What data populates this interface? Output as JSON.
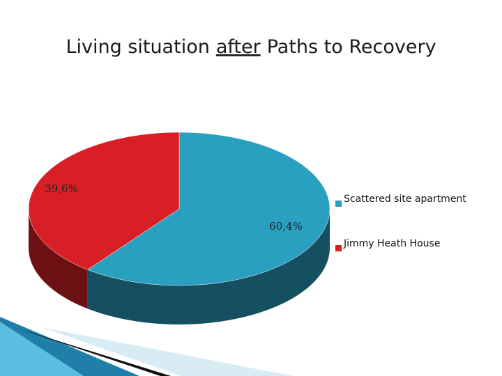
{
  "chart_data": {
    "type": "pie3d",
    "title": [
      "Living situation",
      "after",
      "Paths to Recovery"
    ],
    "title_underlined_part": 1,
    "categories": [
      "Scattered site apartment",
      "Jimmy Heath House"
    ],
    "values": [
      60.4,
      39.6
    ],
    "value_labels": [
      "60,4%",
      "39,6%"
    ],
    "colors": [
      "#2aa0c0",
      "#d91f26"
    ],
    "legend": "right"
  }
}
